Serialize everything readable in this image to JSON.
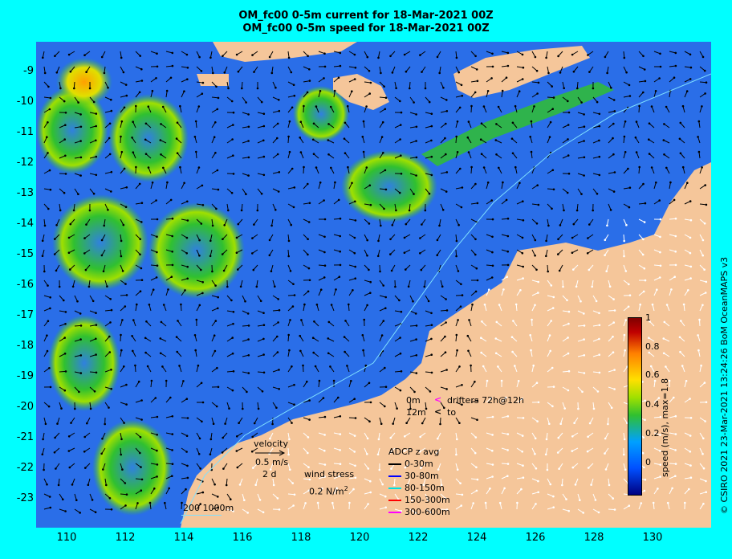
{
  "titles": {
    "line1": "OM_fc00 0-5m current for 18-Mar-2021 00Z",
    "line2": "OM_fc00 0-5m speed for 18-Mar-2021 00Z"
  },
  "axes": {
    "lat_labels": [
      "-9",
      "-10",
      "-11",
      "-12",
      "-13",
      "-14",
      "-15",
      "-16",
      "-17",
      "-18",
      "-19",
      "-20",
      "-21",
      "-22",
      "-23"
    ],
    "lon_labels": [
      "110",
      "112",
      "114",
      "116",
      "118",
      "120",
      "122",
      "124",
      "126",
      "128",
      "130"
    ]
  },
  "legend": {
    "velocity_title": "velocity",
    "velocity_scale": "0.5 m/s",
    "velocity_days": "2 d",
    "wind_stress_title": "wind stress",
    "wind_stress_value": "0.2 N/m",
    "wind_stress_exp": "2",
    "drifters_depth1": "0m",
    "drifters_text1": "drifters 72h@12h",
    "drifters_depth2": "12m",
    "drifters_text2": "to",
    "adcp_title": "ADCP z avg",
    "adcp_items": [
      {
        "label": "0-30m",
        "color": "#000000"
      },
      {
        "label": "30-80m",
        "color": "#0000ff"
      },
      {
        "label": "80-150m",
        "color": "#00e0e0"
      },
      {
        "label": "150-300m",
        "color": "#ff0000"
      },
      {
        "label": "300-600m",
        "color": "#ff00ff"
      }
    ],
    "bathymetry": "200  1000m"
  },
  "colorbar": {
    "ticks": [
      "1",
      "0.8",
      "0.6",
      "0.4",
      "0.2",
      "0"
    ],
    "label": "speed (m/s), max=1.8"
  },
  "credit": "© CSIRO 2021  23-Mar-2021 13:24:26 BoM OceanMAPS v3",
  "colors": {
    "background": "#00ffff",
    "land": "#f5c69a",
    "ocean_slow": "#2060e0",
    "ocean_fast": "#30c030"
  }
}
